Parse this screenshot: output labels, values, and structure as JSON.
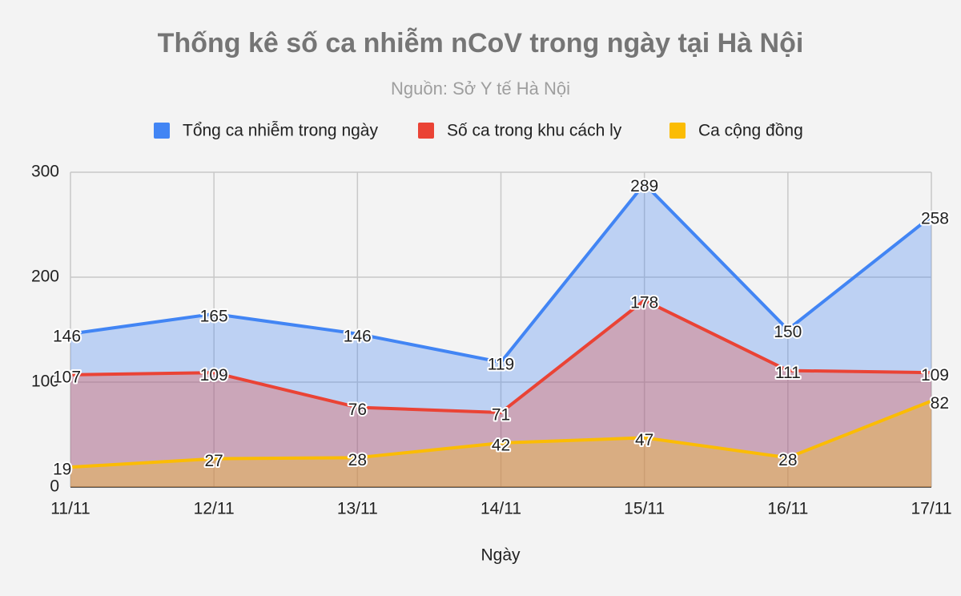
{
  "chart_data": {
    "type": "area",
    "title": "Thống kê số ca nhiễm nCoV trong ngày tại Hà Nội",
    "subtitle": "Nguồn: Sở Y tế Hà Nội",
    "x_label": "Ngày",
    "categories": [
      "11/11",
      "12/11",
      "13/11",
      "14/11",
      "15/11",
      "16/11",
      "17/11"
    ],
    "series": [
      {
        "name": "Tổng ca nhiễm trong ngày",
        "color": "#4285f4",
        "label_color": "#4285f4",
        "values": [
          146,
          165,
          146,
          119,
          289,
          150,
          258
        ]
      },
      {
        "name": "Số ca trong khu cách ly",
        "color": "#ea4335",
        "label_color": "#ea4335",
        "values": [
          107,
          109,
          76,
          71,
          178,
          111,
          109
        ]
      },
      {
        "name": "Ca cộng đồng",
        "color": "#fbbc04",
        "label_color": "#7a5d00",
        "values": [
          19,
          27,
          28,
          42,
          47,
          28,
          82
        ]
      }
    ],
    "ylim": [
      0,
      300
    ],
    "yticks": [
      0,
      100,
      200,
      300
    ],
    "grid": true,
    "legend": "top"
  }
}
